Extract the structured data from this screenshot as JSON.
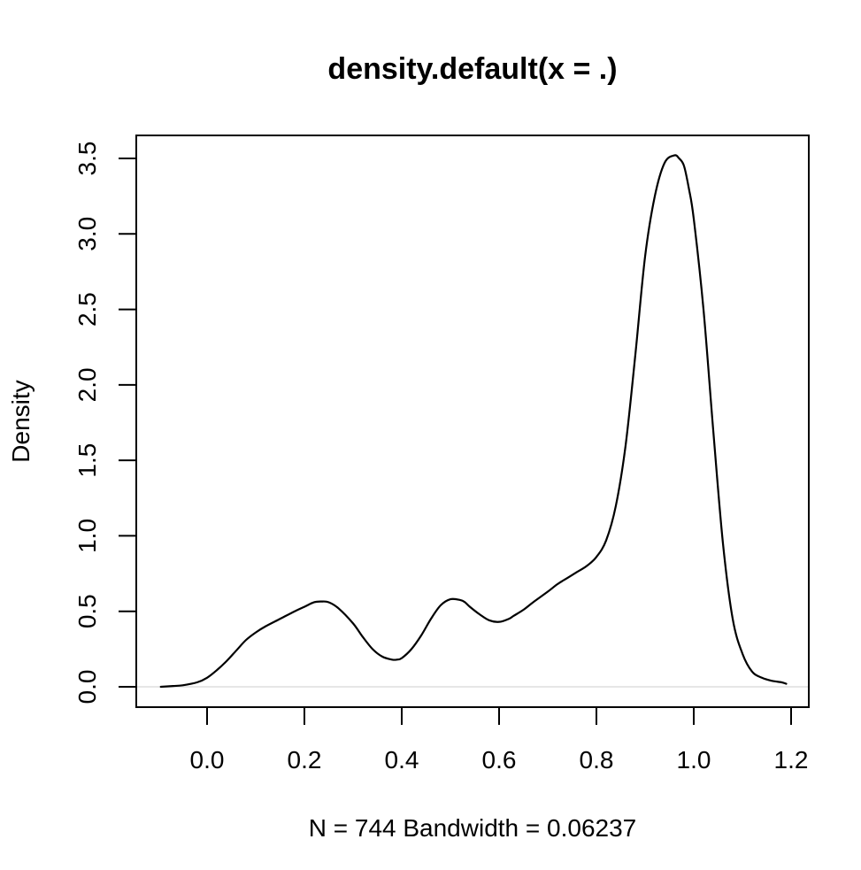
{
  "chart_data": {
    "type": "line",
    "title": "density.default(x = .)",
    "xlabel": "N = 744   Bandwidth = 0.06237",
    "ylabel": "Density",
    "xlim": [
      -0.1,
      1.2
    ],
    "ylim": [
      0.0,
      3.5
    ],
    "xticks": [
      0.0,
      0.2,
      0.4,
      0.6,
      0.8,
      1.0,
      1.2
    ],
    "yticks": [
      0.0,
      0.5,
      1.0,
      1.5,
      2.0,
      2.5,
      3.0,
      3.5
    ],
    "x_tick_labels": [
      "0.0",
      "0.2",
      "0.4",
      "0.6",
      "0.8",
      "1.0",
      "1.2"
    ],
    "y_tick_labels": [
      "0.0",
      "0.5",
      "1.0",
      "1.5",
      "2.0",
      "2.5",
      "3.0",
      "3.5"
    ],
    "grid": false,
    "baseline_y": 0.0,
    "colors": {
      "line": "#000000",
      "frame": "#000000",
      "baseline": "#e6e6e6"
    },
    "series": [
      {
        "x": [
          -0.095,
          -0.07,
          -0.05,
          -0.02,
          0.0,
          0.02,
          0.04,
          0.06,
          0.08,
          0.1,
          0.12,
          0.15,
          0.18,
          0.2,
          0.22,
          0.235,
          0.25,
          0.27,
          0.3,
          0.32,
          0.34,
          0.36,
          0.38,
          0.39,
          0.4,
          0.42,
          0.44,
          0.46,
          0.48,
          0.5,
          0.52,
          0.53,
          0.54,
          0.56,
          0.58,
          0.6,
          0.62,
          0.63,
          0.65,
          0.67,
          0.7,
          0.72,
          0.74,
          0.76,
          0.78,
          0.8,
          0.82,
          0.84,
          0.86,
          0.88,
          0.9,
          0.92,
          0.94,
          0.96,
          0.97,
          0.98,
          0.99,
          1.0,
          1.02,
          1.04,
          1.06,
          1.08,
          1.1,
          1.12,
          1.14,
          1.16,
          1.18,
          1.19
        ],
        "y": [
          0.0,
          0.005,
          0.01,
          0.03,
          0.06,
          0.11,
          0.17,
          0.24,
          0.31,
          0.36,
          0.4,
          0.45,
          0.5,
          0.53,
          0.56,
          0.565,
          0.56,
          0.52,
          0.42,
          0.33,
          0.25,
          0.2,
          0.18,
          0.18,
          0.19,
          0.25,
          0.34,
          0.45,
          0.54,
          0.58,
          0.575,
          0.56,
          0.53,
          0.48,
          0.44,
          0.43,
          0.45,
          0.47,
          0.51,
          0.56,
          0.63,
          0.68,
          0.72,
          0.76,
          0.8,
          0.86,
          0.97,
          1.2,
          1.6,
          2.2,
          2.85,
          3.25,
          3.47,
          3.52,
          3.5,
          3.45,
          3.3,
          3.1,
          2.5,
          1.7,
          0.95,
          0.45,
          0.22,
          0.1,
          0.06,
          0.04,
          0.03,
          0.02
        ]
      }
    ]
  }
}
